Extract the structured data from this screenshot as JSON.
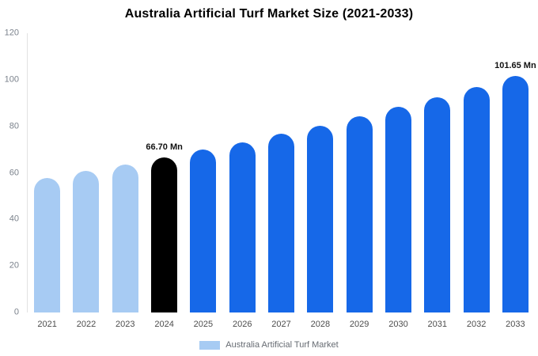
{
  "chart_data": {
    "type": "bar",
    "title": "Australia Artificial Turf Market Size (2021-2033)",
    "categories": [
      "2021",
      "2022",
      "2023",
      "2024",
      "2025",
      "2026",
      "2027",
      "2028",
      "2029",
      "2030",
      "2031",
      "2032",
      "2033"
    ],
    "values": [
      57.9,
      60.7,
      63.7,
      66.7,
      69.9,
      73.2,
      76.8,
      80.4,
      84.3,
      88.3,
      92.5,
      97.0,
      101.65
    ],
    "colors": [
      "#a7cbf3",
      "#a7cbf3",
      "#a7cbf3",
      "#000000",
      "#1668e8",
      "#1668e8",
      "#1668e8",
      "#1668e8",
      "#1668e8",
      "#1668e8",
      "#1668e8",
      "#1668e8",
      "#1668e8"
    ],
    "annotations": [
      {
        "index": 3,
        "text": "66.70 Mn"
      },
      {
        "index": 12,
        "text": "101.65 Mn"
      }
    ],
    "ylim": [
      0,
      120
    ],
    "yticks": [
      0,
      20,
      40,
      60,
      80,
      100,
      120
    ],
    "xlabel": "",
    "ylabel": "",
    "grid": false,
    "legend": "Australia Artificial Turf Market",
    "legend_position": "bottom",
    "legend_swatch_color": "#a7cbf3"
  }
}
